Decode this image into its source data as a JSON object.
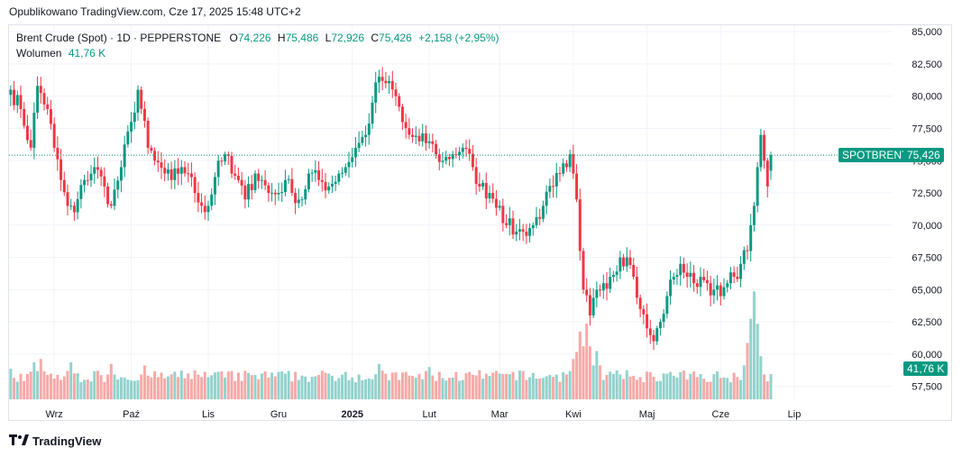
{
  "publication": "Opublikowano TradingView.com, Cze 17, 2025 15:48 UTC+2",
  "legend": {
    "symbol": "Brent Crude (Spot) · 1D · PEPPERSTONE",
    "o_label": "O",
    "open": "74,226",
    "h_label": "H",
    "high": "75,486",
    "l_label": "L",
    "low": "72,926",
    "c_label": "C",
    "close": "75,426",
    "change": "+2,158 (+2,95%)",
    "volume_label": "Wolumen",
    "volume_value": "41,76 K"
  },
  "badges": {
    "symbol": "SPOTBRENT",
    "price": "75,426",
    "volume": "41,76 K"
  },
  "footer": {
    "brand": "TradingView"
  },
  "colors": {
    "up": "#089981",
    "down": "#f23645",
    "vol_up": "#92d2cc",
    "vol_down": "#f7a9a7",
    "grid": "#f0f3fa",
    "text": "#131722"
  },
  "chart_data": {
    "type": "candlestick",
    "ylim": [
      56500,
      85500
    ],
    "y_ticks": [
      "85,000",
      "82,500",
      "80,000",
      "77,500",
      "75,000",
      "72,500",
      "70,000",
      "67,500",
      "65,000",
      "62,500",
      "60,000",
      "57,500"
    ],
    "y_tick_values": [
      85000,
      82500,
      80000,
      77500,
      75000,
      72500,
      70000,
      67500,
      65000,
      62500,
      60000,
      57500
    ],
    "x_ticks": [
      {
        "label": "Wrz",
        "index": 13,
        "bold": false
      },
      {
        "label": "Paź",
        "index": 36,
        "bold": false
      },
      {
        "label": "Lis",
        "index": 59,
        "bold": false
      },
      {
        "label": "Gru",
        "index": 80,
        "bold": false
      },
      {
        "label": "2025",
        "index": 102,
        "bold": true
      },
      {
        "label": "Lut",
        "index": 125,
        "bold": false
      },
      {
        "label": "Mar",
        "index": 146,
        "bold": false
      },
      {
        "label": "Kwi",
        "index": 168,
        "bold": false
      },
      {
        "label": "Maj",
        "index": 190,
        "bold": false
      },
      {
        "label": "Cze",
        "index": 212,
        "bold": false
      },
      {
        "label": "Lip",
        "index": 234,
        "bold": false
      }
    ],
    "last_price": 75426,
    "anchors": [
      [
        0,
        80500
      ],
      [
        3,
        79000
      ],
      [
        6,
        76000
      ],
      [
        8,
        80800
      ],
      [
        11,
        79000
      ],
      [
        13,
        76000
      ],
      [
        15,
        73500
      ],
      [
        17,
        71500
      ],
      [
        19,
        71000
      ],
      [
        22,
        73500
      ],
      [
        25,
        74500
      ],
      [
        28,
        73000
      ],
      [
        30,
        71500
      ],
      [
        33,
        74500
      ],
      [
        36,
        78000
      ],
      [
        38,
        80500
      ],
      [
        41,
        76000
      ],
      [
        43,
        75000
      ],
      [
        46,
        74000
      ],
      [
        48,
        73500
      ],
      [
        51,
        74500
      ],
      [
        53,
        74000
      ],
      [
        55,
        72500
      ],
      [
        57,
        71500
      ],
      [
        59,
        71500
      ],
      [
        62,
        75000
      ],
      [
        64,
        75500
      ],
      [
        66,
        74000
      ],
      [
        68,
        73500
      ],
      [
        70,
        72000
      ],
      [
        73,
        74000
      ],
      [
        75,
        73500
      ],
      [
        77,
        72500
      ],
      [
        80,
        72500
      ],
      [
        82,
        73500
      ],
      [
        84,
        72500
      ],
      [
        87,
        72000
      ],
      [
        89,
        74000
      ],
      [
        92,
        73500
      ],
      [
        95,
        73000
      ],
      [
        98,
        74000
      ],
      [
        100,
        74500
      ],
      [
        103,
        76000
      ],
      [
        106,
        77000
      ],
      [
        108,
        79500
      ],
      [
        110,
        81500
      ],
      [
        112,
        81000
      ],
      [
        115,
        80000
      ],
      [
        117,
        78000
      ],
      [
        119,
        77000
      ],
      [
        122,
        76500
      ],
      [
        125,
        76500
      ],
      [
        127,
        75500
      ],
      [
        129,
        75000
      ],
      [
        132,
        75500
      ],
      [
        135,
        76000
      ],
      [
        138,
        74500
      ],
      [
        140,
        73000
      ],
      [
        143,
        72500
      ],
      [
        146,
        71500
      ],
      [
        148,
        70000
      ],
      [
        151,
        69500
      ],
      [
        153,
        69500
      ],
      [
        156,
        70000
      ],
      [
        159,
        71500
      ],
      [
        162,
        73000
      ],
      [
        164,
        74000
      ],
      [
        166,
        74500
      ],
      [
        167,
        75500
      ],
      [
        168,
        74000
      ],
      [
        169,
        72000
      ],
      [
        170,
        68000
      ],
      [
        171,
        65000
      ],
      [
        173,
        63000
      ],
      [
        175,
        65000
      ],
      [
        177,
        65500
      ],
      [
        179,
        66000
      ],
      [
        182,
        67500
      ],
      [
        184,
        67500
      ],
      [
        186,
        66000
      ],
      [
        188,
        63500
      ],
      [
        190,
        62000
      ],
      [
        192,
        61000
      ],
      [
        194,
        62500
      ],
      [
        196,
        64500
      ],
      [
        198,
        66000
      ],
      [
        200,
        67000
      ],
      [
        202,
        66000
      ],
      [
        204,
        65500
      ],
      [
        206,
        66000
      ],
      [
        208,
        65500
      ],
      [
        210,
        65000
      ],
      [
        212,
        64500
      ],
      [
        214,
        65500
      ],
      [
        216,
        66000
      ],
      [
        218,
        67000
      ],
      [
        220,
        68000
      ],
      [
        221,
        70000
      ],
      [
        222,
        71500
      ],
      [
        223,
        74500
      ],
      [
        224,
        77000
      ],
      [
        225,
        75000
      ],
      [
        226,
        73000
      ],
      [
        227,
        75426
      ]
    ],
    "volume": {
      "base": 7500,
      "peaks": [
        [
          0,
          9500
        ],
        [
          7,
          11500
        ],
        [
          9,
          12500
        ],
        [
          18,
          11500
        ],
        [
          30,
          11000
        ],
        [
          40,
          10500
        ],
        [
          55,
          9000
        ],
        [
          75,
          8000
        ],
        [
          100,
          8500
        ],
        [
          110,
          11000
        ],
        [
          125,
          10000
        ],
        [
          140,
          6800
        ],
        [
          150,
          8500
        ],
        [
          168,
          12500
        ],
        [
          170,
          21000
        ],
        [
          172,
          23500
        ],
        [
          175,
          15000
        ],
        [
          184,
          9000
        ],
        [
          195,
          8000
        ],
        [
          210,
          7800
        ],
        [
          220,
          15000
        ],
        [
          221,
          25000
        ],
        [
          222,
          33500
        ],
        [
          223,
          18000
        ],
        [
          224,
          11000
        ]
      ]
    }
  }
}
